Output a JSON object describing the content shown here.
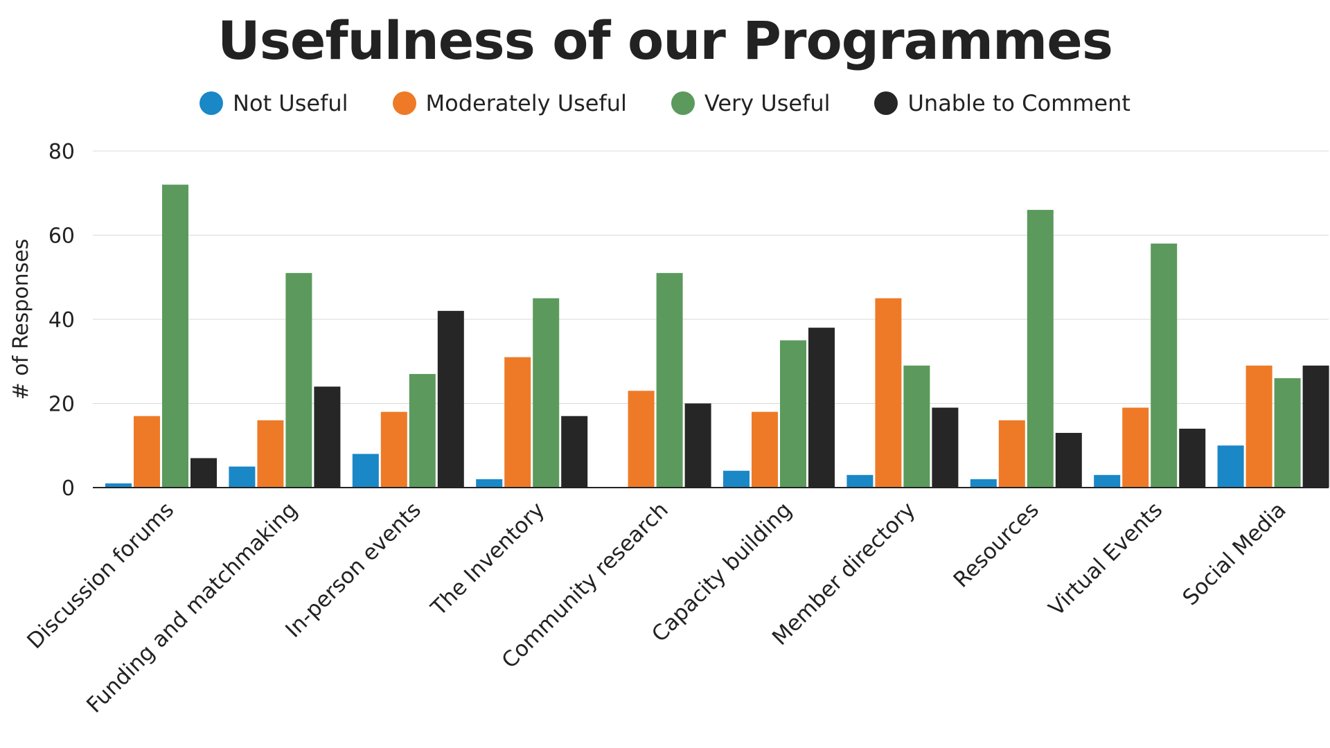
{
  "chart_data": {
    "type": "bar",
    "title": "Usefulness of our Programmes",
    "xlabel": "",
    "ylabel": "# of Responses",
    "ylim": [
      0,
      80
    ],
    "yticks": [
      0,
      20,
      40,
      60,
      80
    ],
    "grid": true,
    "legend_position": "top",
    "categories": [
      "Discussion forums",
      "Funding and matchmaking",
      "In-person events",
      "The Inventory",
      "Community research",
      "Capacity building",
      "Member directory",
      "Resources",
      "Virtual Events",
      "Social Media"
    ],
    "series": [
      {
        "name": "Not Useful",
        "color": "#1a87c7",
        "values": [
          1,
          5,
          8,
          2,
          0,
          4,
          3,
          2,
          3,
          10
        ]
      },
      {
        "name": "Moderately Useful",
        "color": "#ee7a27",
        "values": [
          17,
          16,
          18,
          31,
          23,
          18,
          45,
          16,
          19,
          29
        ]
      },
      {
        "name": "Very Useful",
        "color": "#5b9a5c",
        "values": [
          72,
          51,
          27,
          45,
          51,
          35,
          29,
          66,
          58,
          26
        ]
      },
      {
        "name": "Unable to Comment",
        "color": "#262626",
        "values": [
          7,
          24,
          42,
          17,
          20,
          38,
          19,
          13,
          14,
          29
        ]
      }
    ]
  }
}
